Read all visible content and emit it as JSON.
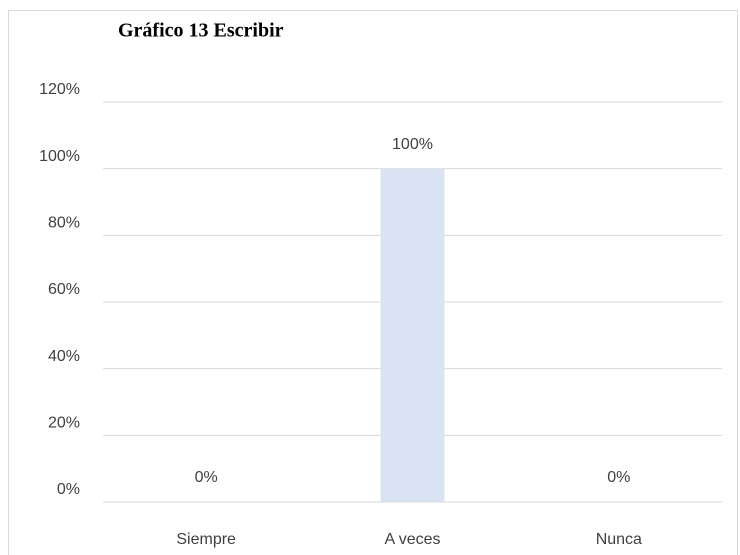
{
  "chart_data": {
    "type": "bar",
    "title": "Gráfico 13 Escribir",
    "categories": [
      "Siempre",
      "A veces",
      "Nunca"
    ],
    "values": [
      0,
      100,
      0
    ],
    "value_labels": [
      "0%",
      "100%",
      "0%"
    ],
    "color": "#dae3f3",
    "ylim": [
      0,
      120
    ],
    "yticks": [
      {
        "value": 0,
        "label": "0%"
      },
      {
        "value": 20,
        "label": "20%"
      },
      {
        "value": 40,
        "label": "40%"
      },
      {
        "value": 60,
        "label": "60%"
      },
      {
        "value": 80,
        "label": "80%"
      },
      {
        "value": 100,
        "label": "100%"
      },
      {
        "value": 120,
        "label": "120%"
      }
    ],
    "grid": true
  }
}
